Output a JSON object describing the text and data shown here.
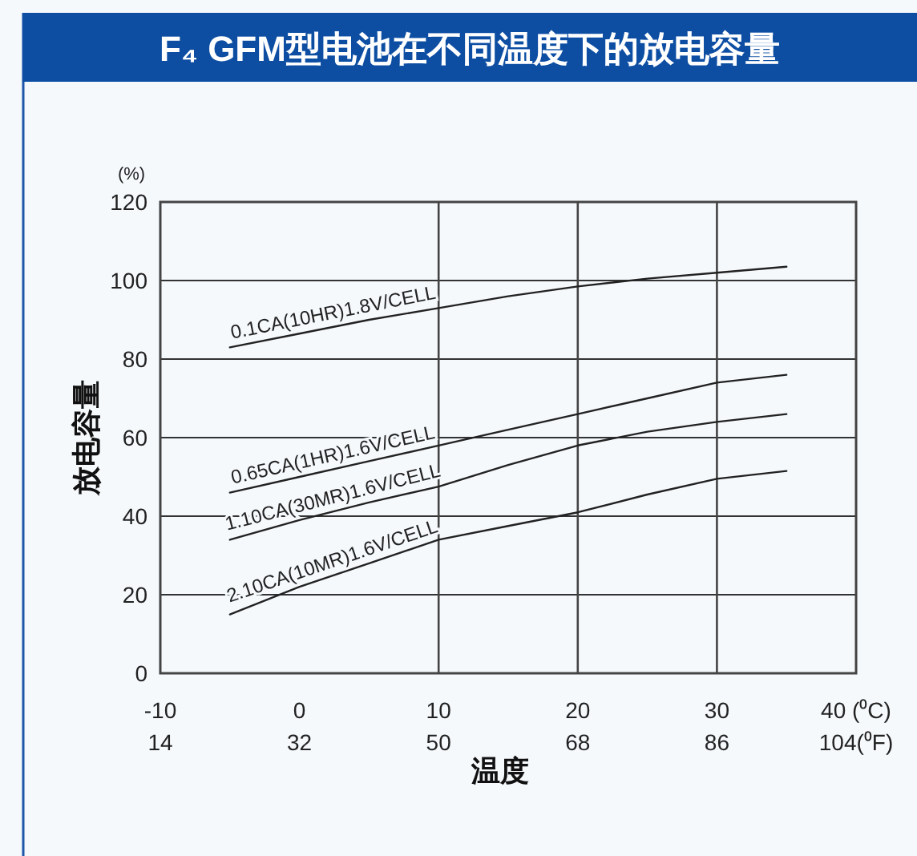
{
  "chart_data": {
    "type": "line",
    "title": "F₄ GFM型电池在不同温度下的放电容量",
    "xlabel": "温度",
    "ylabel": "放电容量",
    "annotations": [
      "(%)"
    ],
    "x": [
      -5,
      0,
      5,
      10,
      15,
      20,
      25,
      30,
      35
    ],
    "xlim": [
      -10,
      40
    ],
    "ylim": [
      0,
      120
    ],
    "xticks": [
      -10,
      0,
      10,
      20,
      30,
      {
        "value": 40,
        "label": "40 (⁰C)"
      }
    ],
    "x2lim": [
      14,
      104
    ],
    "x2ticks": [
      14,
      32,
      50,
      68,
      86,
      {
        "value": 104,
        "label": "104(⁰F)"
      }
    ],
    "yticks": [
      0,
      20,
      40,
      60,
      80,
      100,
      120
    ],
    "grid": "y",
    "marker": "none",
    "line_style": "solid",
    "ref_lines": [
      {
        "axis": "x",
        "value": 10,
        "color": "#444444"
      },
      {
        "axis": "x",
        "value": 20,
        "color": "#444444"
      },
      {
        "axis": "x",
        "value": 30,
        "color": "#444444"
      }
    ],
    "series": [
      {
        "name": "0.1CA(10HR)1.8V/CELL",
        "color": "#222222",
        "values": [
          83,
          86.5,
          90,
          93,
          96,
          98.5,
          100.5,
          102,
          103.5
        ]
      },
      {
        "name": "0.65CA(1HR)1.6V/CELL",
        "color": "#222222",
        "values": [
          46,
          50,
          54,
          58,
          62,
          66,
          70,
          74,
          76
        ]
      },
      {
        "name": "1.10CA(30MR)1.6V/CELL",
        "color": "#222222",
        "values": [
          34,
          39,
          43.5,
          47.5,
          53,
          58,
          61.5,
          64,
          66
        ]
      },
      {
        "name": "2.10CA(10MR)1.6V/CELL",
        "color": "#222222",
        "values": [
          15,
          22,
          28,
          34,
          37.5,
          41,
          45.5,
          49.5,
          51.5
        ]
      }
    ]
  }
}
